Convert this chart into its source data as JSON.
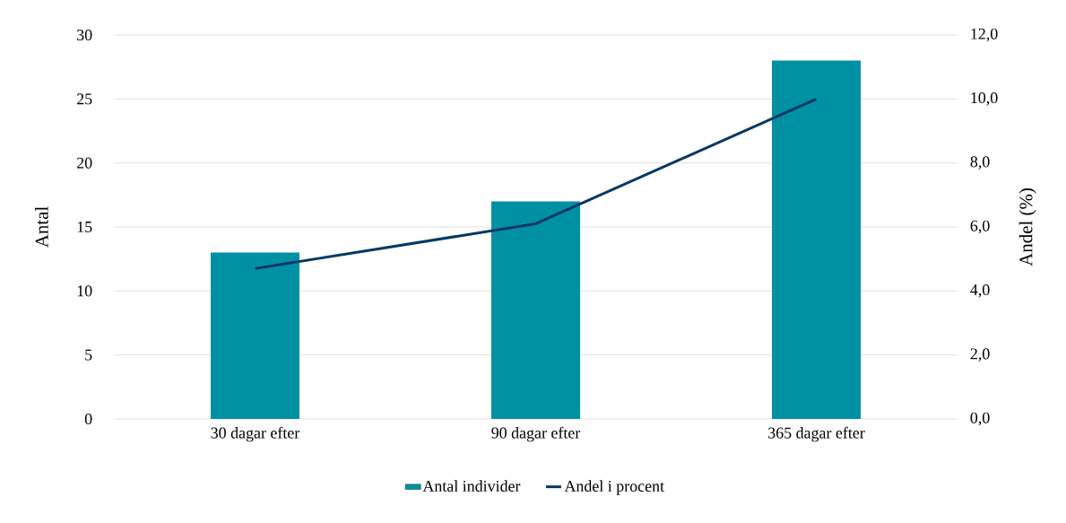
{
  "chart_data": {
    "type": "bar",
    "categories": [
      "30 dagar efter",
      "90 dagar efter",
      "365 dagar efter"
    ],
    "series": [
      {
        "name": "Antal individer",
        "color": "#0090a4",
        "values": [
          13,
          17,
          28
        ]
      },
      {
        "name": "Andel i procent",
        "type": "line",
        "axis": "y2",
        "color": "#003865",
        "values": [
          4.7,
          6.1,
          10.0
        ]
      }
    ],
    "ylabel": "Antal",
    "y2label": "Andel (%)",
    "ylim": [
      0,
      30
    ],
    "yticks": [
      0,
      5,
      10,
      15,
      20,
      25,
      30
    ],
    "y2lim": [
      0,
      12
    ],
    "y2ticks": [
      {
        "value": 0,
        "label": "0,0"
      },
      {
        "value": 2,
        "label": "2,0"
      },
      {
        "value": 4,
        "label": "4,0"
      },
      {
        "value": 6,
        "label": "6,0"
      },
      {
        "value": 8,
        "label": "8,0"
      },
      {
        "value": 10,
        "label": "10,0"
      },
      {
        "value": 12,
        "label": "12,0"
      }
    ],
    "grid": "y",
    "legend": "bottom"
  }
}
